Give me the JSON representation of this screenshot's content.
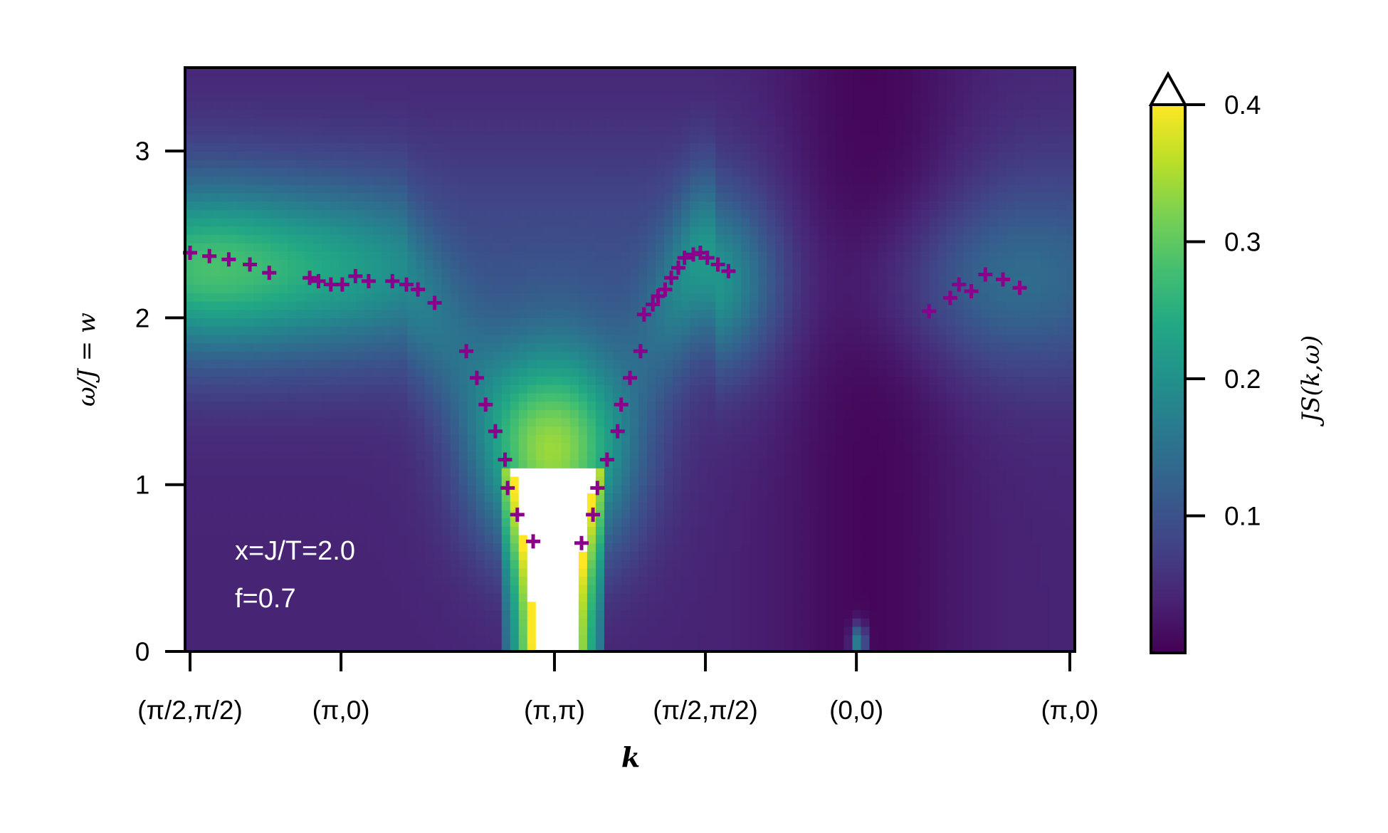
{
  "chart_data": {
    "type": "heatmap",
    "title": "",
    "xlabel": "k",
    "ylabel": "ω/J = w",
    "colorbar_label": "JS(k,ω)",
    "ylim": [
      0,
      3.5
    ],
    "colorbar_range": [
      0.0,
      0.4
    ],
    "colorbar_extend": "max",
    "colormap": "viridis",
    "x_ticks": [
      {
        "label": "(π/2,π/2)",
        "pos": 0.0
      },
      {
        "label": "(π,0)",
        "pos": 0.1716
      },
      {
        "label": "(π,π)",
        "pos": 0.4142
      },
      {
        "label": "(π/2,π/2)",
        "pos": 0.5858
      },
      {
        "label": "(0,0)",
        "pos": 0.7574
      },
      {
        "label": "(π,0)",
        "pos": 1.0
      }
    ],
    "y_ticks": [
      0,
      1,
      2,
      3
    ],
    "colorbar_ticks": [
      0.1,
      0.2,
      0.3,
      0.4
    ],
    "annotations": [
      "x=J/T=2.0",
      "f=0.7"
    ],
    "marker_color": "#8b008b",
    "peak_markers": {
      "x": [
        0.0,
        0.022,
        0.044,
        0.068,
        0.09,
        0.136,
        0.146,
        0.16,
        0.173,
        0.188,
        0.203,
        0.23,
        0.246,
        0.259,
        0.278,
        0.314,
        0.326,
        0.336,
        0.347,
        0.358,
        0.361,
        0.372,
        0.39,
        0.445,
        0.458,
        0.463,
        0.474,
        0.486,
        0.49,
        0.5,
        0.512,
        0.516,
        0.526,
        0.532,
        0.54,
        0.547,
        0.555,
        0.562,
        0.572,
        0.58,
        0.588,
        0.6,
        0.612,
        0.84,
        0.864,
        0.874,
        0.888,
        0.904,
        0.924,
        0.943
      ],
      "y": [
        2.39,
        2.37,
        2.35,
        2.32,
        2.27,
        2.24,
        2.22,
        2.2,
        2.2,
        2.25,
        2.22,
        2.22,
        2.2,
        2.17,
        2.09,
        1.8,
        1.64,
        1.48,
        1.32,
        1.15,
        0.98,
        0.82,
        0.66,
        0.65,
        0.82,
        0.98,
        1.15,
        1.32,
        1.48,
        1.64,
        1.8,
        2.02,
        2.08,
        2.13,
        2.17,
        2.24,
        2.3,
        2.36,
        2.38,
        2.39,
        2.36,
        2.32,
        2.28,
        2.04,
        2.12,
        2.2,
        2.16,
        2.26,
        2.23,
        2.18
      ]
    }
  }
}
